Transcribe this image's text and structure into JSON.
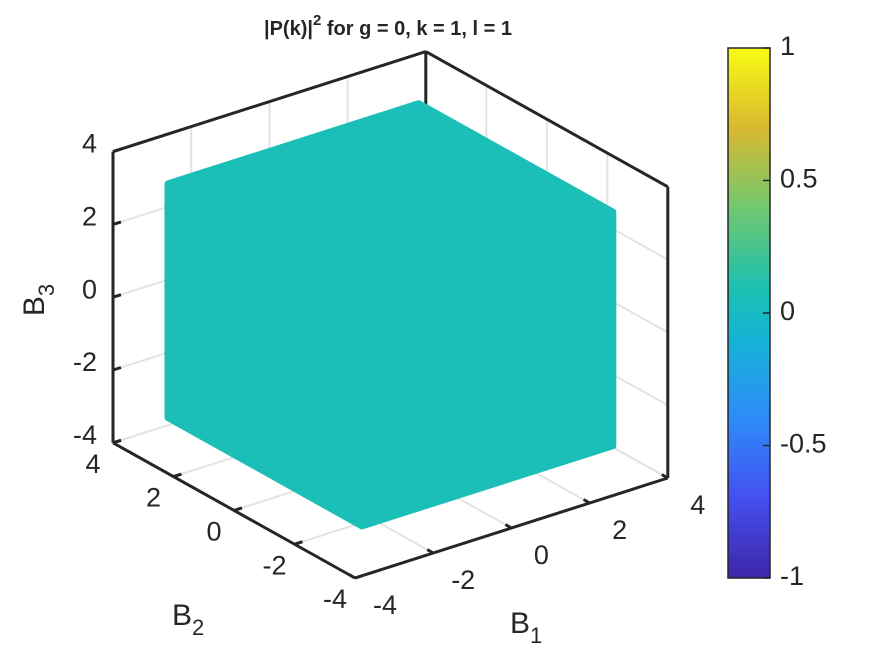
{
  "chart_data": {
    "type": "scatter3",
    "title": {
      "text": "|P(k)|",
      "superscript": "2",
      "rest": " for g = 0, k = 1, l = 1"
    },
    "xlabel": {
      "text": "B",
      "subscript": "1"
    },
    "ylabel": {
      "text": "B",
      "subscript": "2"
    },
    "zlabel": {
      "text": "B",
      "subscript": "3"
    },
    "xlim": [
      -4,
      4
    ],
    "ylim": [
      -4,
      4
    ],
    "zlim": [
      -4,
      4
    ],
    "xticks": [
      -4,
      -2,
      0,
      2,
      4
    ],
    "yticks": [
      -4,
      -2,
      0,
      2,
      4
    ],
    "zticks": [
      -4,
      -2,
      0,
      2,
      4
    ],
    "points": {
      "lim": [
        -3.2,
        3.2
      ],
      "value": 0
    },
    "color": "#1bbfb7",
    "grid": true,
    "colorbar": {
      "clim": [
        -1,
        1
      ],
      "ticks": [
        -1,
        -0.5,
        0,
        0.5,
        1
      ]
    }
  }
}
